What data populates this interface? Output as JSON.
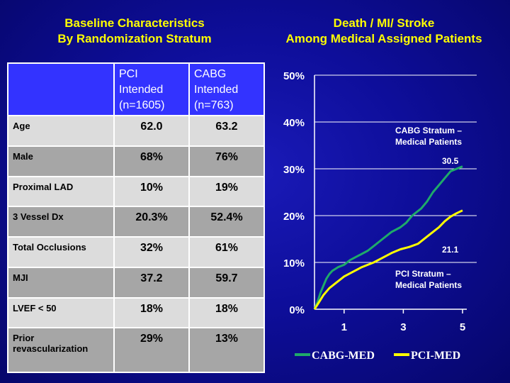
{
  "left_title": [
    "Baseline Characteristics",
    "By Randomization Stratum"
  ],
  "right_title": [
    "Death / MI/ Stroke",
    "Among Medical Assigned Patients"
  ],
  "table": {
    "columns": [
      [
        "PCI",
        "Intended",
        "(n=1605)"
      ],
      [
        "CABG",
        "Intended",
        "(n=763)"
      ]
    ],
    "rows": [
      {
        "label": "Age",
        "pci": "62.0",
        "cabg": "63.2"
      },
      {
        "label": "Male",
        "pci": "68%",
        "cabg": "76%"
      },
      {
        "label": "Proximal LAD",
        "pci": "10%",
        "cabg": "19%"
      },
      {
        "label": "3 Vessel Dx",
        "pci": "20.3%",
        "cabg": "52.4%"
      },
      {
        "label": "Total Occlusions",
        "pci": "32%",
        "cabg": "61%"
      },
      {
        "label": "MJI",
        "pci": "37.2",
        "cabg": "59.7"
      },
      {
        "label": "LVEF < 50",
        "pci": "18%",
        "cabg": "18%"
      },
      {
        "label": "Prior revascularization",
        "pci": "29%",
        "cabg": "13%"
      }
    ]
  },
  "chart_data": {
    "type": "line",
    "xticks": [
      "1",
      "3",
      "5"
    ],
    "yticks": [
      "0%",
      "10%",
      "20%",
      "30%",
      "40%",
      "50%"
    ],
    "xlim": [
      0,
      5
    ],
    "ylim": [
      0,
      50
    ],
    "grid": true,
    "legend_position": "bottom",
    "series": [
      {
        "name": "CABG-MED",
        "color": "#1faa6a",
        "end_label": "30.5",
        "x": [
          0,
          0.1,
          0.2,
          0.3,
          0.4,
          0.5,
          0.6,
          0.8,
          1.0,
          1.2,
          1.5,
          1.8,
          2.0,
          2.3,
          2.6,
          2.9,
          3.1,
          3.3,
          3.6,
          3.8,
          4.0,
          4.2,
          4.4,
          4.6,
          4.8,
          5.0
        ],
        "y": [
          0,
          1.5,
          3.5,
          5.0,
          6.5,
          7.5,
          8.2,
          9.0,
          9.5,
          10.5,
          11.5,
          12.5,
          13.5,
          15.0,
          16.5,
          17.5,
          18.5,
          20.0,
          21.5,
          23.0,
          25.0,
          26.5,
          28.0,
          29.5,
          30.0,
          30.5
        ]
      },
      {
        "name": "PCI-MED",
        "color": "#ffff00",
        "end_label": "21.1",
        "x": [
          0,
          0.1,
          0.2,
          0.3,
          0.5,
          0.8,
          1.0,
          1.3,
          1.6,
          2.0,
          2.3,
          2.6,
          2.9,
          3.2,
          3.5,
          3.8,
          4.0,
          4.2,
          4.4,
          4.6,
          4.8,
          5.0
        ],
        "y": [
          0,
          1.0,
          2.0,
          3.0,
          4.5,
          6.0,
          7.0,
          8.0,
          9.0,
          10.0,
          11.0,
          12.0,
          12.8,
          13.3,
          14.0,
          15.5,
          16.5,
          17.5,
          18.8,
          19.8,
          20.5,
          21.1
        ]
      }
    ]
  },
  "annotations": {
    "cabg_stratum": [
      "CABG Stratum –",
      "Medical Patients"
    ],
    "pci_stratum": [
      "PCI  Stratum –",
      "Medical Patients"
    ]
  }
}
